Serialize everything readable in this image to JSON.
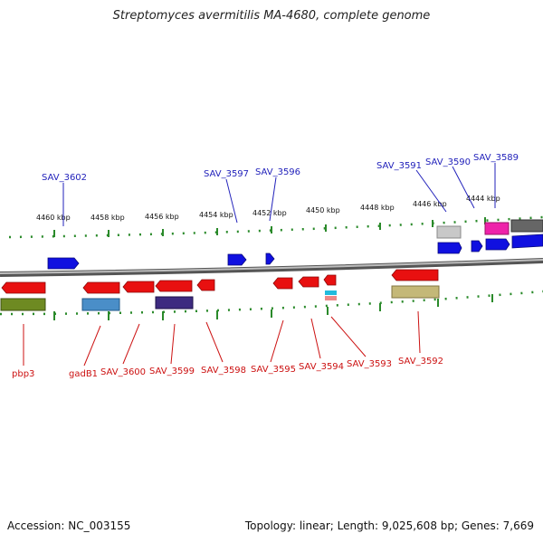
{
  "title": "Streptomyces avermitilis MA-4680, complete genome",
  "accession": "Accession: NC_003155",
  "stats": "Topology: linear; Length: 9,025,608 bp; Genes: 7,669",
  "colors": {
    "forward": "#1010e0",
    "reverse": "#e81010",
    "label_top": "#2222bb",
    "label_bottom": "#cc1111",
    "tick": "#228822",
    "backbone": "#8a8a8a"
  },
  "scale_labels": [
    "4460 kbp",
    "4458 kbp",
    "4456 kbp",
    "4454 kbp",
    "4452 kbp",
    "4450 kbp",
    "4448 kbp",
    "4446 kbp",
    "4444 kbp"
  ],
  "genes_top": [
    {
      "label": "SAV_3602"
    },
    {
      "label": "SAV_3597"
    },
    {
      "label": "SAV_3596"
    },
    {
      "label": "SAV_3591"
    },
    {
      "label": "SAV_3590"
    },
    {
      "label": "SAV_3589"
    }
  ],
  "genes_bottom": [
    {
      "label": "pbp3"
    },
    {
      "label": "gadB1"
    },
    {
      "label": "SAV_3600"
    },
    {
      "label": "SAV_3599"
    },
    {
      "label": "SAV_3598"
    },
    {
      "label": "SAV_3595"
    },
    {
      "label": "SAV_3594"
    },
    {
      "label": "SAV_3593"
    },
    {
      "label": "SAV_3592"
    }
  ]
}
